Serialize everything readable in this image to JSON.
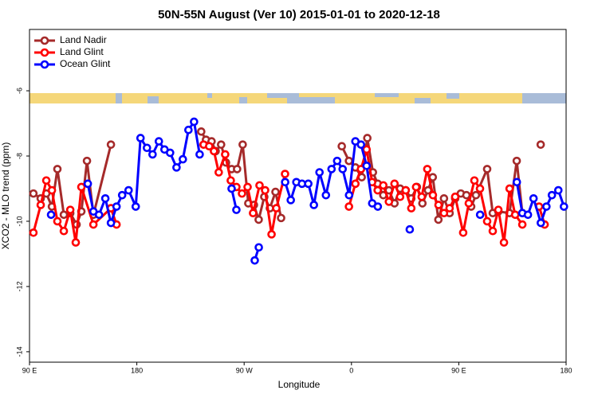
{
  "chart_data": {
    "type": "line",
    "title": "50N-55N August (Ver 10)   2015-01-01 to 2020-12-18",
    "xlabel": "Longitude",
    "ylabel": "XCO2 - MLO trend (ppm)",
    "xlim": [
      90,
      540
    ],
    "xticks": [
      {
        "value": 90,
        "label": "90 E"
      },
      180,
      {
        "value": 270,
        "label": "90 W"
      },
      {
        "value": 360,
        "label": "0"
      },
      {
        "value": 450,
        "label": "90 E"
      },
      {
        "value": 540,
        "label": "180"
      }
    ],
    "ylim": [
      -14.32,
      -4.12
    ],
    "yticks": [
      -6,
      -8,
      -10,
      -12,
      -14
    ],
    "legend": "upper left",
    "series": [
      {
        "name": "Land Nadir",
        "color": "#a52a2a",
        "x": [
          93.3,
          99.4,
          104.1,
          108.8,
          113.4,
          118.8,
          124.2,
          129.5,
          133.5,
          138.2,
          143.6,
          158.3,
          null,
          234.0,
          238.0,
          242.7,
          246.1,
          250.7,
          254.8,
          259.5,
          264.1,
          268.8,
          273.5,
          278.2,
          282.2,
          286.9,
          291.6,
          296.3,
          301.0,
          null,
          351.9,
          357.9,
          363.3,
          368.6,
          373.3,
          378.0,
          382.0,
          386.7,
          391.4,
          396.1,
          400.8,
          405.5,
          410.2,
          414.9,
          419.5,
          424.2,
          428.2,
          432.9,
          437.6,
          442.3,
          447.0,
          451.7,
          456.4,
          460.4,
          464.4,
          473.8,
          478.5,
          483.2,
          492.5,
          498.6,
          503.3,
          null,
          518.7
        ],
        "values": [
          -9.15,
          -9.3,
          -9.15,
          -9.55,
          -8.4,
          -9.8,
          -9.75,
          -10.1,
          -9.7,
          -8.15,
          -9.8,
          -7.65,
          null,
          -7.25,
          -7.5,
          -7.55,
          -7.85,
          -7.65,
          -8.2,
          -8.4,
          -8.4,
          -7.65,
          -9.45,
          -9.5,
          -9.95,
          -9.25,
          -9.6,
          -9.1,
          -9.9,
          null,
          -7.7,
          -8.15,
          -8.35,
          -8.65,
          -7.45,
          -8.5,
          -8.85,
          -9.2,
          -9.05,
          -9.45,
          -9.0,
          -9.05,
          -9.3,
          -8.95,
          -9.45,
          -9.05,
          -8.65,
          -9.95,
          -9.3,
          -9.75,
          -9.3,
          -9.15,
          -9.2,
          -9.55,
          -9.2,
          -8.4,
          -9.75,
          -9.7,
          -9.75,
          -8.15,
          -9.75,
          null,
          -7.65
        ]
      },
      {
        "name": "Land Glint",
        "color": "#ff0000",
        "x": [
          93.3,
          99.4,
          104.1,
          108.8,
          113.4,
          118.8,
          124.2,
          128.8,
          133.5,
          143.6,
          158.3,
          163.0,
          null,
          236.0,
          240.7,
          244.7,
          248.7,
          254.1,
          258.8,
          263.5,
          268.2,
          272.9,
          277.5,
          282.9,
          287.6,
          293.0,
          297.0,
          304.3,
          null,
          357.9,
          363.3,
          368.0,
          372.7,
          377.3,
          382.0,
          386.7,
          391.4,
          396.1,
          400.8,
          405.5,
          410.2,
          414.2,
          418.9,
          423.6,
          428.3,
          433.0,
          437.6,
          442.3,
          447.0,
          453.7,
          458.4,
          463.1,
          467.8,
          473.8,
          478.5,
          483.2,
          487.9,
          492.6,
          497.3,
          503.3,
          null,
          517.3,
          522.0
        ],
        "values": [
          -10.35,
          -9.5,
          -8.75,
          -9.05,
          -10.0,
          -10.3,
          -9.65,
          -10.65,
          -8.95,
          -10.1,
          -9.6,
          -10.1,
          null,
          -7.65,
          -7.7,
          -7.85,
          -8.5,
          -7.95,
          -8.75,
          -8.95,
          -9.15,
          -8.95,
          -9.75,
          -8.9,
          -9.05,
          -10.4,
          -9.6,
          -8.55,
          null,
          -9.55,
          -8.85,
          -8.4,
          -7.8,
          -8.8,
          -9.05,
          -8.9,
          -9.4,
          -8.85,
          -9.25,
          -9.05,
          -9.6,
          -8.95,
          -9.25,
          -8.4,
          -9.2,
          -9.5,
          -9.75,
          -9.6,
          -9.25,
          -10.35,
          -9.45,
          -8.75,
          -9.0,
          -10.0,
          -10.3,
          -9.65,
          -10.65,
          -9.0,
          -9.8,
          -10.1,
          null,
          -9.55,
          -10.1
        ]
      },
      {
        "name": "Ocean Glint",
        "color": "#0000ff",
        "x": [
          108.1,
          null,
          138.9,
          143.6,
          148.3,
          153.6,
          158.3,
          163.0,
          167.7,
          173.1,
          179.1,
          183.1,
          188.5,
          193.2,
          198.5,
          203.2,
          207.9,
          213.3,
          218.6,
          223.3,
          228.0,
          232.7,
          null,
          259.5,
          263.5,
          null,
          278.9,
          282.3,
          null,
          304.4,
          309.1,
          313.8,
          318.5,
          323.8,
          328.5,
          333.2,
          338.6,
          343.3,
          348.0,
          352.6,
          358.0,
          363.3,
          368.0,
          372.7,
          377.4,
          382.1,
          null,
          408.9,
          null,
          467.9,
          null,
          498.7,
          503.3,
          508.0,
          512.7,
          518.8,
          523.5,
          528.1,
          533.5,
          538.2
        ],
        "values": [
          -9.8,
          null,
          -8.85,
          -9.7,
          -9.8,
          -9.3,
          -10.05,
          -9.55,
          -9.2,
          -9.05,
          -9.55,
          -7.45,
          -7.75,
          -7.95,
          -7.55,
          -7.8,
          -7.9,
          -8.35,
          -8.1,
          -7.2,
          -6.95,
          -7.95,
          null,
          -9.0,
          -9.65,
          null,
          -11.2,
          -10.8,
          null,
          -8.8,
          -9.35,
          -8.8,
          -8.85,
          -8.85,
          -9.5,
          -8.5,
          -9.2,
          -8.4,
          -8.15,
          -8.4,
          -9.2,
          -7.55,
          -7.65,
          -8.3,
          -9.45,
          -9.55,
          null,
          -10.25,
          null,
          -9.8,
          null,
          -8.8,
          -9.75,
          -9.8,
          -9.3,
          -10.05,
          -9.55,
          -9.2,
          -9.05,
          -9.55
        ]
      }
    ]
  }
}
